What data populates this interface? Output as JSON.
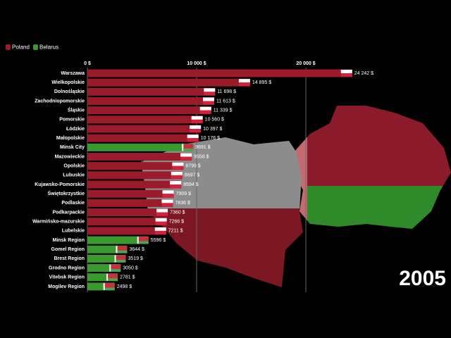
{
  "chart_data": {
    "type": "bar",
    "orientation": "horizontal",
    "categories": [
      "Warszawa",
      "Wielkopolskie",
      "Dolnośląskie",
      "Zachodniopomorskie",
      "Śląskie",
      "Pomorskie",
      "Łódzkie",
      "Małopolskie",
      "Minsk City",
      "Mazowieckie",
      "Opolskie",
      "Lubuskie",
      "Kujawsko-Pomorskie",
      "Świętokrzystkie",
      "Podlaskie",
      "Podkarpackie",
      "Warmińsko-mazurskie",
      "Lubelskie",
      "Minsk Region",
      "Gomel Region",
      "Brest Region",
      "Grodno Region",
      "Vitebsk Region",
      "Mogilev Region"
    ],
    "series": [
      {
        "name": "Poland",
        "color": "#9c1b2b",
        "values": [
          24242,
          14895,
          11698,
          11613,
          11339,
          10560,
          10397,
          10176,
          null,
          9558,
          8799,
          8697,
          8594,
          7909,
          7836,
          7360,
          7266,
          7211,
          null,
          null,
          null,
          null,
          null,
          null
        ],
        "value_labels": [
          "24 242 $",
          "14 895 $",
          "11 698 $",
          "11 613 $",
          "11 339 $",
          "10 560 $",
          "10 397 $",
          "10 176 $",
          null,
          "9558 $",
          "8799 $",
          "8697 $",
          "8594 $",
          "7909 $",
          "7836 $",
          "7360 $",
          "7266 $",
          "7211 $",
          null,
          null,
          null,
          null,
          null,
          null
        ]
      },
      {
        "name": "Belarus",
        "color": "#3b9a2f",
        "values": [
          null,
          null,
          null,
          null,
          null,
          null,
          null,
          null,
          9691,
          null,
          null,
          null,
          null,
          null,
          null,
          null,
          null,
          null,
          5596,
          3644,
          3519,
          3050,
          2781,
          2498
        ],
        "value_labels": [
          null,
          null,
          null,
          null,
          null,
          null,
          null,
          null,
          "9691 $",
          null,
          null,
          null,
          null,
          null,
          null,
          null,
          null,
          null,
          "5596 $",
          "3644 $",
          "3519 $",
          "3050 $",
          "2781 $",
          "2498 $"
        ]
      }
    ],
    "xlim": [
      0,
      33290
    ],
    "xticks": [
      {
        "value": 0,
        "label": "0 $"
      },
      {
        "value": 10000,
        "label": "10 000 $"
      },
      {
        "value": 20000,
        "label": "20 000 $"
      }
    ],
    "grid": true,
    "legend": "top-left",
    "annotation": "2005"
  }
}
